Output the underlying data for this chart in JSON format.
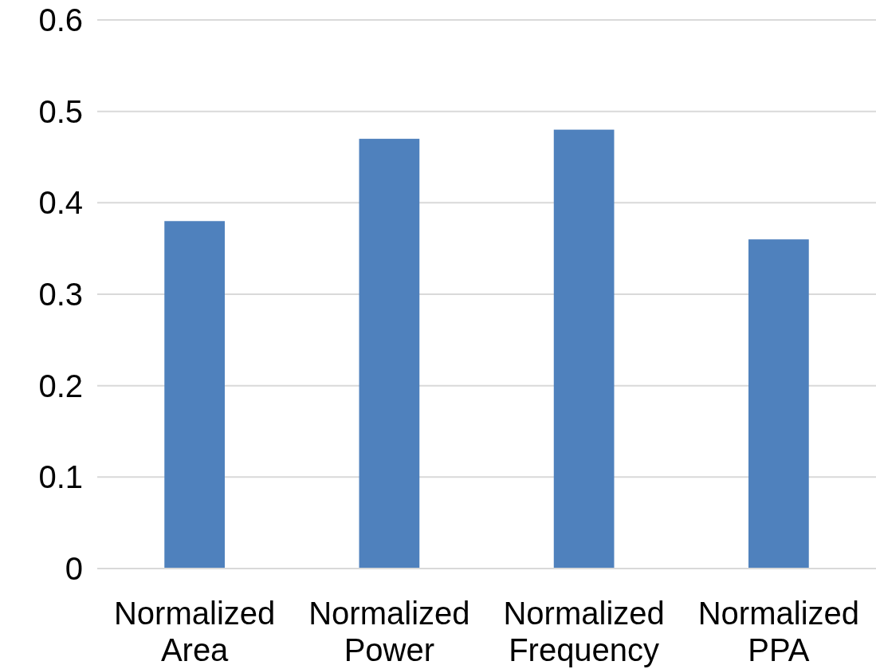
{
  "chart_data": {
    "type": "bar",
    "categories": [
      "Normalized Area",
      "Normalized Power",
      "Normalized Frequency",
      "Normalized PPA"
    ],
    "values": [
      0.38,
      0.47,
      0.48,
      0.36
    ],
    "color": "#4f81bd",
    "ylim": [
      0,
      0.6
    ],
    "yticks": [
      {
        "value": 0,
        "label": "0"
      },
      0.1,
      0.2,
      0.3,
      0.4,
      0.5,
      0.6
    ],
    "grid": "y"
  }
}
